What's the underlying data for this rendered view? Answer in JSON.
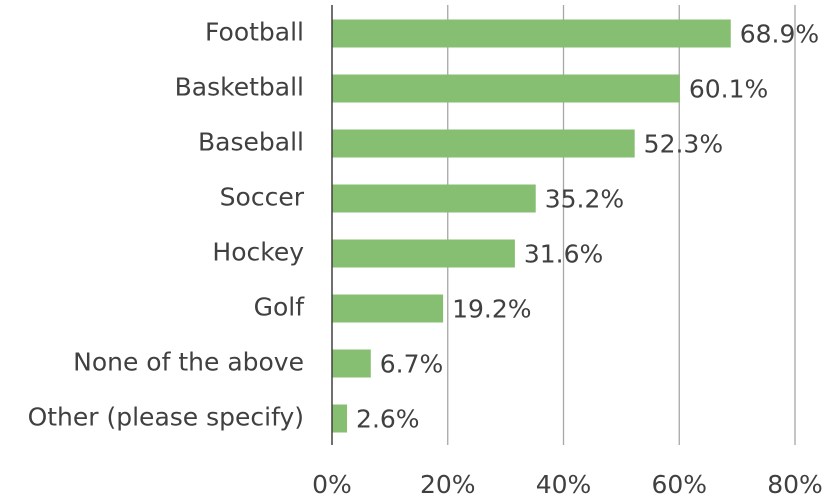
{
  "chart_data": {
    "type": "bar",
    "orientation": "horizontal",
    "categories": [
      "Football",
      "Basketball",
      "Baseball",
      "Soccer",
      "Hockey",
      "Golf",
      "None of the above",
      "Other (please specify)"
    ],
    "values": [
      68.9,
      60.1,
      52.3,
      35.2,
      31.6,
      19.2,
      6.7,
      2.6
    ],
    "value_labels": [
      "68.9%",
      "60.1%",
      "52.3%",
      "35.2%",
      "31.6%",
      "19.2%",
      "6.7%",
      "2.6%"
    ],
    "color": "#86bf72",
    "xlim": [
      0,
      80
    ],
    "xticks": [
      {
        "value": 0,
        "label": "0%"
      },
      {
        "value": 20,
        "label": "20%"
      },
      {
        "value": 40,
        "label": "40%"
      },
      {
        "value": 60,
        "label": "60%"
      },
      {
        "value": 80,
        "label": "80%"
      }
    ],
    "grid": true
  }
}
